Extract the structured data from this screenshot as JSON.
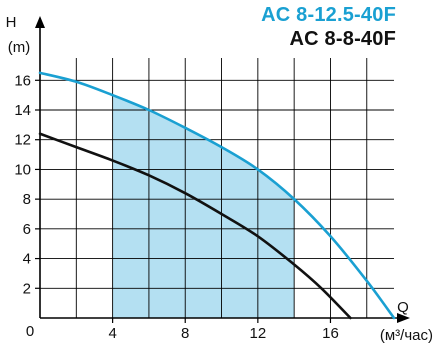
{
  "chart_data": {
    "type": "line",
    "title": "",
    "ylabel": "H",
    "yunit": "(m)",
    "xlabel": "Q",
    "xunit": "(м³/час)",
    "origin_label": "0",
    "xlim": [
      0,
      19.5
    ],
    "ylim": [
      0,
      17.5
    ],
    "x_ticks": [
      4,
      8,
      12,
      16
    ],
    "y_ticks": [
      2,
      4,
      6,
      8,
      10,
      12,
      14,
      16
    ],
    "grid": true,
    "legend_position": "top-right",
    "shaded_region": {
      "x_start": 4,
      "x_end": 14,
      "color": "#b4e0f2"
    },
    "series": [
      {
        "name": "AC 8-12.5-40F",
        "color": "#1aa0d2",
        "x": [
          0,
          2,
          4,
          6,
          8,
          10,
          12,
          14,
          16,
          18,
          19.5
        ],
        "y": [
          16.5,
          15.9,
          15.0,
          14.0,
          12.8,
          11.5,
          10.0,
          8.0,
          5.5,
          2.5,
          0
        ]
      },
      {
        "name": "AC 8-8-40F",
        "color": "#111111",
        "x": [
          0,
          2,
          4,
          6,
          8,
          10,
          12,
          14,
          15.5,
          17.1
        ],
        "y": [
          12.4,
          11.5,
          10.6,
          9.6,
          8.4,
          7.0,
          5.5,
          3.6,
          2.0,
          0
        ]
      }
    ]
  }
}
